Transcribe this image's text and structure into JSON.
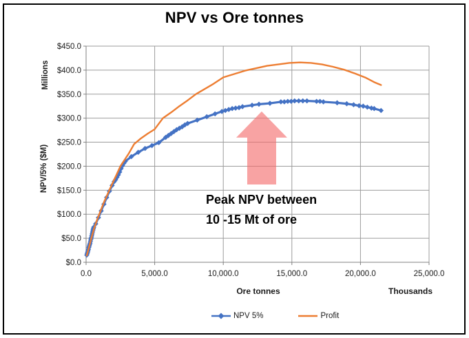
{
  "chart_data": {
    "type": "line",
    "title": "NPV vs Ore tonnes",
    "x_axis": {
      "label": "Ore tonnes",
      "units_label": "Thousands",
      "min": 0,
      "max": 25000,
      "tick_step": 5000,
      "tick_labels": [
        "0.0",
        "5,000.0",
        "10,000.0",
        "15,000.0",
        "20,000.0",
        "25,000.0"
      ]
    },
    "y_axis": {
      "label": "NPV/5% ($M)",
      "units_label": "Millions",
      "min": 0,
      "max": 450,
      "tick_step": 50,
      "tick_labels": [
        "$0.0",
        "$50.0",
        "$100.0",
        "$150.0",
        "$200.0",
        "$250.0",
        "$300.0",
        "$350.0",
        "$400.0",
        "$450.0"
      ]
    },
    "grid": true,
    "legend_position": "bottom",
    "series": [
      {
        "name": "NPV 5%",
        "color": "#4472C4",
        "marker": "diamond",
        "points": [
          [
            50,
            15
          ],
          [
            80,
            18
          ],
          [
            110,
            21
          ],
          [
            140,
            24
          ],
          [
            170,
            27
          ],
          [
            200,
            31
          ],
          [
            230,
            34
          ],
          [
            260,
            37
          ],
          [
            290,
            40
          ],
          [
            320,
            44
          ],
          [
            350,
            48
          ],
          [
            380,
            51
          ],
          [
            410,
            55
          ],
          [
            440,
            59
          ],
          [
            470,
            63
          ],
          [
            500,
            67
          ],
          [
            530,
            70
          ],
          [
            560,
            73
          ],
          [
            700,
            80
          ],
          [
            900,
            93
          ],
          [
            1100,
            107
          ],
          [
            1300,
            121
          ],
          [
            1500,
            135
          ],
          [
            1700,
            148
          ],
          [
            1900,
            160
          ],
          [
            2050,
            168
          ],
          [
            2150,
            172
          ],
          [
            2250,
            177
          ],
          [
            2350,
            182
          ],
          [
            2450,
            188
          ],
          [
            2550,
            195
          ],
          [
            2650,
            201
          ],
          [
            2750,
            206
          ],
          [
            2850,
            210
          ],
          [
            3300,
            220
          ],
          [
            3800,
            229
          ],
          [
            4300,
            237
          ],
          [
            4800,
            243
          ],
          [
            5300,
            249
          ],
          [
            5800,
            260
          ],
          [
            6000,
            264
          ],
          [
            6200,
            268
          ],
          [
            6400,
            272
          ],
          [
            6600,
            276
          ],
          [
            6800,
            279
          ],
          [
            7000,
            282
          ],
          [
            7200,
            286
          ],
          [
            7400,
            289
          ],
          [
            8100,
            296
          ],
          [
            8800,
            303
          ],
          [
            9400,
            309
          ],
          [
            9900,
            314
          ],
          [
            10150,
            316
          ],
          [
            10400,
            318
          ],
          [
            10650,
            320
          ],
          [
            10900,
            321
          ],
          [
            11150,
            322
          ],
          [
            11400,
            324
          ],
          [
            12100,
            327
          ],
          [
            12600,
            329
          ],
          [
            13400,
            331
          ],
          [
            14200,
            334
          ],
          [
            14450,
            334
          ],
          [
            14700,
            335
          ],
          [
            14950,
            335
          ],
          [
            15200,
            336
          ],
          [
            15500,
            336
          ],
          [
            15800,
            336
          ],
          [
            16100,
            336
          ],
          [
            16800,
            335
          ],
          [
            17050,
            335
          ],
          [
            17300,
            334
          ],
          [
            18300,
            332
          ],
          [
            19000,
            330
          ],
          [
            19500,
            328
          ],
          [
            19900,
            326
          ],
          [
            20200,
            325
          ],
          [
            20500,
            323
          ],
          [
            20800,
            321
          ],
          [
            21000,
            320
          ],
          [
            21500,
            316
          ]
        ]
      },
      {
        "name": "Profit",
        "color": "#ED7D31",
        "marker": "none",
        "points": [
          [
            50,
            14
          ],
          [
            200,
            30
          ],
          [
            400,
            52
          ],
          [
            600,
            72
          ],
          [
            800,
            88
          ],
          [
            1000,
            103
          ],
          [
            1300,
            125
          ],
          [
            1600,
            144
          ],
          [
            1900,
            163
          ],
          [
            2200,
            181
          ],
          [
            2500,
            200
          ],
          [
            2800,
            213
          ],
          [
            3100,
            226
          ],
          [
            3500,
            246
          ],
          [
            4000,
            258
          ],
          [
            4500,
            268
          ],
          [
            5000,
            277
          ],
          [
            5600,
            300
          ],
          [
            6200,
            312
          ],
          [
            6800,
            325
          ],
          [
            7400,
            337
          ],
          [
            8000,
            350
          ],
          [
            8600,
            360
          ],
          [
            9200,
            370
          ],
          [
            10000,
            385
          ],
          [
            10800,
            392
          ],
          [
            11600,
            399
          ],
          [
            12400,
            404
          ],
          [
            13200,
            409
          ],
          [
            14000,
            412
          ],
          [
            14800,
            415
          ],
          [
            15600,
            416
          ],
          [
            16400,
            415
          ],
          [
            17200,
            412
          ],
          [
            18000,
            407
          ],
          [
            18800,
            401
          ],
          [
            19600,
            393
          ],
          [
            20400,
            384
          ],
          [
            21000,
            375
          ],
          [
            21500,
            369
          ]
        ]
      }
    ],
    "annotation": {
      "line1": "Peak NPV between",
      "line2": "10 -15 Mt of ore",
      "arrow": {
        "x": 12800,
        "y_base": 162,
        "y_tip": 314
      },
      "arrow_color": "rgba(244,106,106,0.62)"
    },
    "colors": {
      "gridline": "#9b9b9b",
      "axis": "#808080",
      "tick_text": "#1a1a1a"
    }
  }
}
